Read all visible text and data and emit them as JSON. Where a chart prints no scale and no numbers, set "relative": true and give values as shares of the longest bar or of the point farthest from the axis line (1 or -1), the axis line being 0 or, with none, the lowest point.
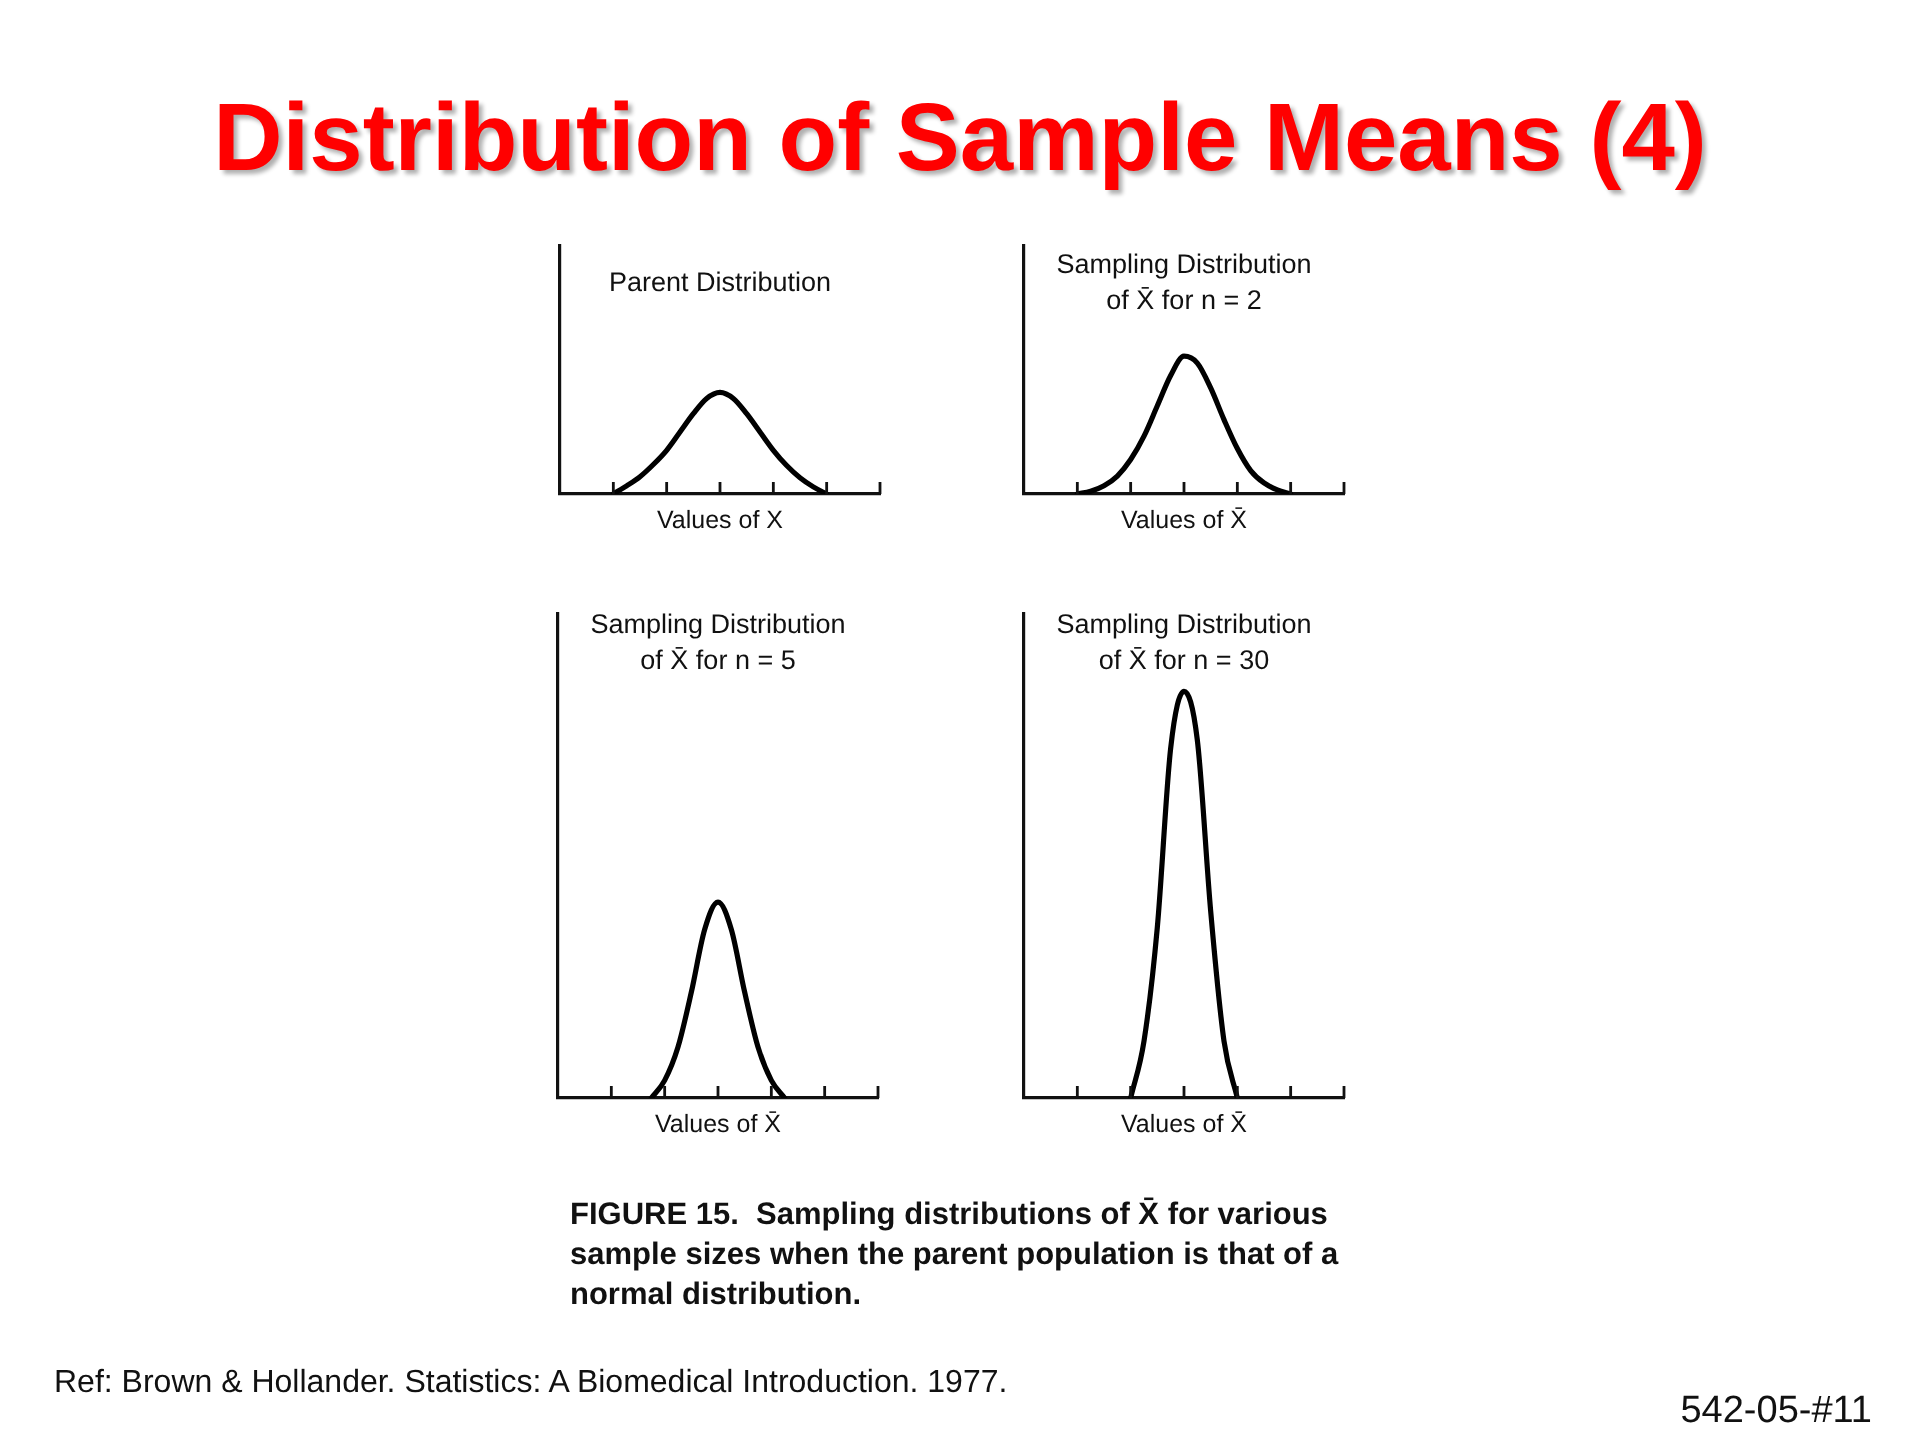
{
  "chart_data": [
    {
      "type": "other",
      "title": "Distribution of Sample Means (4)"
    },
    {
      "type": "line",
      "title": "Parent Distribution",
      "xlabel": "Values of X",
      "relative": true,
      "categories": [
        null,
        null,
        null,
        null,
        null,
        null,
        null,
        null,
        null,
        null,
        null,
        null,
        null,
        null,
        null,
        null,
        null,
        null,
        null,
        null,
        null,
        null,
        null,
        null,
        null
      ],
      "series": [
        {
          "color": "#000000",
          "values": [
            null,
            null,
            null,
            null,
            0,
            0.08,
            0.17,
            0.29,
            0.43,
            0.61,
            0.79,
            0.94,
            1,
            0.94,
            0.79,
            0.61,
            0.43,
            0.28,
            0.16,
            0.07,
            0,
            null,
            null,
            null,
            null
          ]
        }
      ]
    },
    {
      "type": "line",
      "title": "Sampling Distribution of X̄ for n = 2",
      "xlabel": "Values of X̄",
      "relative": true,
      "categories": [
        null,
        null,
        null,
        null,
        null,
        null,
        null,
        null,
        null,
        null,
        null,
        null,
        null,
        null,
        null,
        null,
        null,
        null,
        null,
        null,
        null,
        null,
        null,
        null,
        null
      ],
      "series": [
        {
          "color": "#000000",
          "values": [
            null,
            null,
            null,
            null,
            0,
            0.02,
            0.06,
            0.13,
            0.25,
            0.42,
            0.64,
            0.86,
            1,
            0.95,
            0.77,
            0.54,
            0.33,
            0.17,
            0.08,
            0.03,
            0,
            null,
            null,
            null,
            null
          ]
        }
      ]
    },
    {
      "type": "line",
      "title": "Sampling Distribution of X̄ for n = 5",
      "xlabel": "Values of X̄",
      "relative": true,
      "categories": [
        null,
        null,
        null,
        null,
        null,
        null,
        null,
        null,
        null,
        null,
        null,
        null,
        null,
        null,
        null,
        null,
        null,
        null,
        null,
        null,
        null,
        null,
        null,
        null,
        null
      ],
      "series": [
        {
          "color": "#000000",
          "values": [
            null,
            null,
            null,
            null,
            null,
            null,
            null,
            0,
            0.09,
            0.26,
            0.54,
            0.86,
            1,
            0.86,
            0.54,
            0.26,
            0.09,
            0,
            null,
            null,
            null,
            null,
            null,
            null,
            null
          ]
        }
      ]
    },
    {
      "type": "line",
      "title": "Sampling Distribution of X̄ for n = 30",
      "xlabel": "Values of X̄",
      "relative": true,
      "categories": [
        null,
        null,
        null,
        null,
        null,
        null,
        null,
        null,
        null,
        null,
        null,
        null,
        null,
        null,
        null,
        null,
        null,
        null,
        null,
        null,
        null,
        null,
        null,
        null,
        null
      ],
      "series": [
        {
          "color": "#000000",
          "values": [
            null,
            null,
            null,
            null,
            null,
            null,
            null,
            null,
            0,
            0.14,
            0.42,
            0.86,
            1,
            0.88,
            0.46,
            0.14,
            0,
            null,
            null,
            null,
            null,
            null,
            null,
            null,
            null
          ]
        }
      ]
    },
    {
      "type": "other",
      "annotations": [
        "FIGURE 15.  Sampling distributions of X̄ for various sample sizes when the parent population is that of a normal distribution.",
        "Ref: Brown & Hollander. Statistics: A Biomedical Introduction. 1977.",
        "542-05-#11"
      ]
    }
  ]
}
